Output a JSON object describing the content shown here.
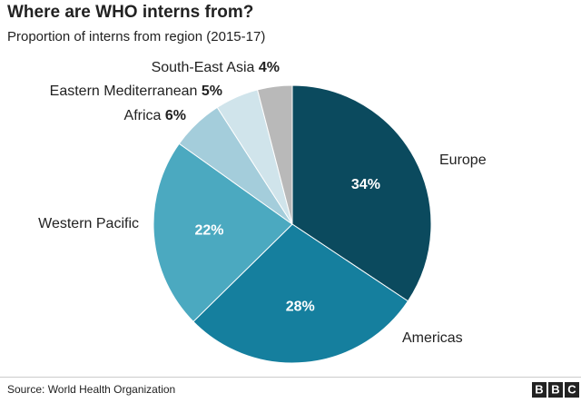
{
  "chart_data": {
    "type": "pie",
    "title": "Where are WHO interns from?",
    "subtitle": "Proportion of interns from region (2015-17)",
    "categories": [
      "Europe",
      "Americas",
      "Western Pacific",
      "Africa",
      "Eastern Mediterranean",
      "South-East Asia"
    ],
    "values": [
      34,
      28,
      22,
      6,
      5,
      4
    ],
    "value_labels": [
      "34%",
      "28%",
      "22%",
      "6%",
      "5%",
      "4%"
    ],
    "colors": [
      "#0b4a5e",
      "#157f9e",
      "#4ba9c0",
      "#a4cddb",
      "#d0e4eb",
      "#b9b9b9"
    ],
    "source": "Source: World Health Organization"
  },
  "logo": [
    "B",
    "B",
    "C"
  ]
}
